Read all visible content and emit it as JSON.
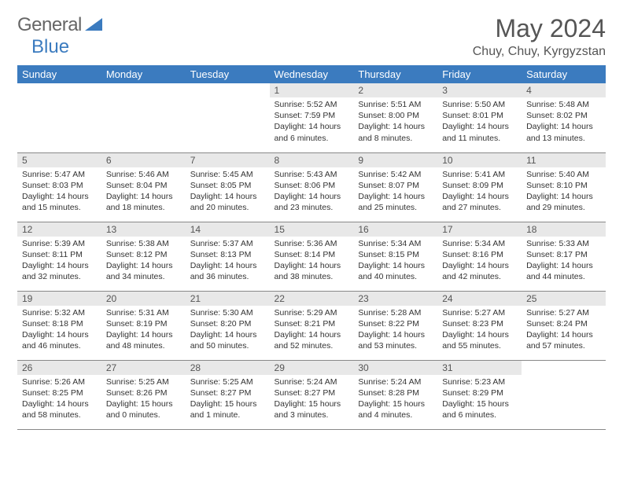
{
  "brand": {
    "part1": "General",
    "part2": "Blue"
  },
  "title": "May 2024",
  "location": "Chuy, Chuy, Kyrgyzstan",
  "colors": {
    "header_bg": "#3b7bbf",
    "header_fg": "#ffffff",
    "daynum_bg": "#e8e8e8",
    "text": "#333333",
    "rule": "#888888",
    "background": "#ffffff"
  },
  "typography": {
    "title_fontsize": 32,
    "location_fontsize": 16,
    "weekday_fontsize": 13,
    "daynum_fontsize": 12,
    "body_fontsize": 10.5
  },
  "weekdays": [
    "Sunday",
    "Monday",
    "Tuesday",
    "Wednesday",
    "Thursday",
    "Friday",
    "Saturday"
  ],
  "weeks": [
    [
      {
        "n": "",
        "sr": "",
        "ss": "",
        "dl": ""
      },
      {
        "n": "",
        "sr": "",
        "ss": "",
        "dl": ""
      },
      {
        "n": "",
        "sr": "",
        "ss": "",
        "dl": ""
      },
      {
        "n": "1",
        "sr": "5:52 AM",
        "ss": "7:59 PM",
        "dl": "14 hours and 6 minutes."
      },
      {
        "n": "2",
        "sr": "5:51 AM",
        "ss": "8:00 PM",
        "dl": "14 hours and 8 minutes."
      },
      {
        "n": "3",
        "sr": "5:50 AM",
        "ss": "8:01 PM",
        "dl": "14 hours and 11 minutes."
      },
      {
        "n": "4",
        "sr": "5:48 AM",
        "ss": "8:02 PM",
        "dl": "14 hours and 13 minutes."
      }
    ],
    [
      {
        "n": "5",
        "sr": "5:47 AM",
        "ss": "8:03 PM",
        "dl": "14 hours and 15 minutes."
      },
      {
        "n": "6",
        "sr": "5:46 AM",
        "ss": "8:04 PM",
        "dl": "14 hours and 18 minutes."
      },
      {
        "n": "7",
        "sr": "5:45 AM",
        "ss": "8:05 PM",
        "dl": "14 hours and 20 minutes."
      },
      {
        "n": "8",
        "sr": "5:43 AM",
        "ss": "8:06 PM",
        "dl": "14 hours and 23 minutes."
      },
      {
        "n": "9",
        "sr": "5:42 AM",
        "ss": "8:07 PM",
        "dl": "14 hours and 25 minutes."
      },
      {
        "n": "10",
        "sr": "5:41 AM",
        "ss": "8:09 PM",
        "dl": "14 hours and 27 minutes."
      },
      {
        "n": "11",
        "sr": "5:40 AM",
        "ss": "8:10 PM",
        "dl": "14 hours and 29 minutes."
      }
    ],
    [
      {
        "n": "12",
        "sr": "5:39 AM",
        "ss": "8:11 PM",
        "dl": "14 hours and 32 minutes."
      },
      {
        "n": "13",
        "sr": "5:38 AM",
        "ss": "8:12 PM",
        "dl": "14 hours and 34 minutes."
      },
      {
        "n": "14",
        "sr": "5:37 AM",
        "ss": "8:13 PM",
        "dl": "14 hours and 36 minutes."
      },
      {
        "n": "15",
        "sr": "5:36 AM",
        "ss": "8:14 PM",
        "dl": "14 hours and 38 minutes."
      },
      {
        "n": "16",
        "sr": "5:34 AM",
        "ss": "8:15 PM",
        "dl": "14 hours and 40 minutes."
      },
      {
        "n": "17",
        "sr": "5:34 AM",
        "ss": "8:16 PM",
        "dl": "14 hours and 42 minutes."
      },
      {
        "n": "18",
        "sr": "5:33 AM",
        "ss": "8:17 PM",
        "dl": "14 hours and 44 minutes."
      }
    ],
    [
      {
        "n": "19",
        "sr": "5:32 AM",
        "ss": "8:18 PM",
        "dl": "14 hours and 46 minutes."
      },
      {
        "n": "20",
        "sr": "5:31 AM",
        "ss": "8:19 PM",
        "dl": "14 hours and 48 minutes."
      },
      {
        "n": "21",
        "sr": "5:30 AM",
        "ss": "8:20 PM",
        "dl": "14 hours and 50 minutes."
      },
      {
        "n": "22",
        "sr": "5:29 AM",
        "ss": "8:21 PM",
        "dl": "14 hours and 52 minutes."
      },
      {
        "n": "23",
        "sr": "5:28 AM",
        "ss": "8:22 PM",
        "dl": "14 hours and 53 minutes."
      },
      {
        "n": "24",
        "sr": "5:27 AM",
        "ss": "8:23 PM",
        "dl": "14 hours and 55 minutes."
      },
      {
        "n": "25",
        "sr": "5:27 AM",
        "ss": "8:24 PM",
        "dl": "14 hours and 57 minutes."
      }
    ],
    [
      {
        "n": "26",
        "sr": "5:26 AM",
        "ss": "8:25 PM",
        "dl": "14 hours and 58 minutes."
      },
      {
        "n": "27",
        "sr": "5:25 AM",
        "ss": "8:26 PM",
        "dl": "15 hours and 0 minutes."
      },
      {
        "n": "28",
        "sr": "5:25 AM",
        "ss": "8:27 PM",
        "dl": "15 hours and 1 minute."
      },
      {
        "n": "29",
        "sr": "5:24 AM",
        "ss": "8:27 PM",
        "dl": "15 hours and 3 minutes."
      },
      {
        "n": "30",
        "sr": "5:24 AM",
        "ss": "8:28 PM",
        "dl": "15 hours and 4 minutes."
      },
      {
        "n": "31",
        "sr": "5:23 AM",
        "ss": "8:29 PM",
        "dl": "15 hours and 6 minutes."
      },
      {
        "n": "",
        "sr": "",
        "ss": "",
        "dl": ""
      }
    ]
  ],
  "labels": {
    "sunrise": "Sunrise:",
    "sunset": "Sunset:",
    "daylight": "Daylight:"
  }
}
